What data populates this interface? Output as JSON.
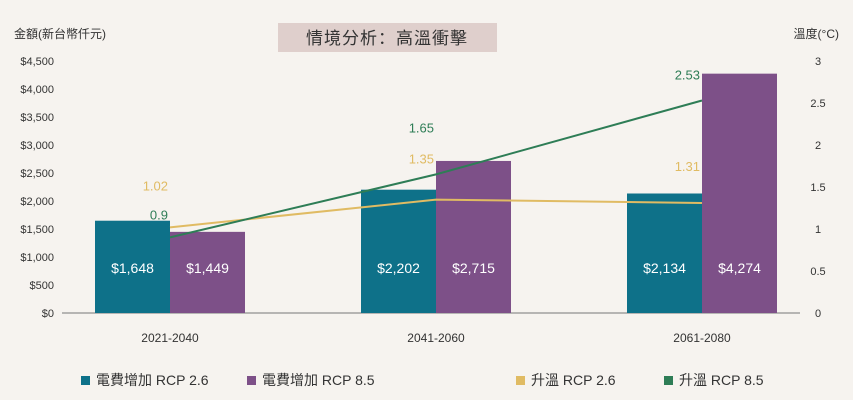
{
  "chart_data": {
    "type": "bar",
    "title": "情境分析：高溫衝擊",
    "ylabel": "金額(新台幣仟元)",
    "y2label": "溫度(°C)",
    "categories": [
      "2021-2040",
      "2041-2060",
      "2061-2080"
    ],
    "ylim": [
      0,
      4500
    ],
    "yticks": [
      "$0",
      "$500",
      "$1,000",
      "$1,500",
      "$2,000",
      "$2,500",
      "$3,000",
      "$3,500",
      "$4,000",
      "$4,500"
    ],
    "y2lim": [
      0,
      3
    ],
    "y2ticks": [
      "0",
      "0.5",
      "1",
      "1.5",
      "2",
      "2.5",
      "3"
    ],
    "series": [
      {
        "name": "電費增加 RCP 2.6",
        "kind": "bar",
        "axis": "left",
        "color": "#0e7189",
        "values": [
          1648,
          2202,
          2134
        ],
        "labels": [
          "$1,648",
          "$2,202",
          "$2,134"
        ]
      },
      {
        "name": "電費增加 RCP 8.5",
        "kind": "bar",
        "axis": "left",
        "color": "#7d5088",
        "values": [
          1449,
          2715,
          4274
        ],
        "labels": [
          "$1,449",
          "$2,715",
          "$4,274"
        ]
      },
      {
        "name": "升溫 RCP 2.6",
        "kind": "line",
        "axis": "right",
        "color": "#e0bb63",
        "values": [
          1.02,
          1.35,
          1.31
        ],
        "labels": [
          "1.02",
          "1.35",
          "1.31"
        ]
      },
      {
        "name": "升溫 RCP 8.5",
        "kind": "line",
        "axis": "right",
        "color": "#2e7d56",
        "values": [
          0.9,
          1.65,
          2.53
        ],
        "labels": [
          "0.9",
          "1.65",
          "2.53"
        ]
      }
    ],
    "grid": false,
    "legend": "bottom"
  },
  "colors": {
    "title_box": "#dfcfcc",
    "axis": "#777777"
  }
}
